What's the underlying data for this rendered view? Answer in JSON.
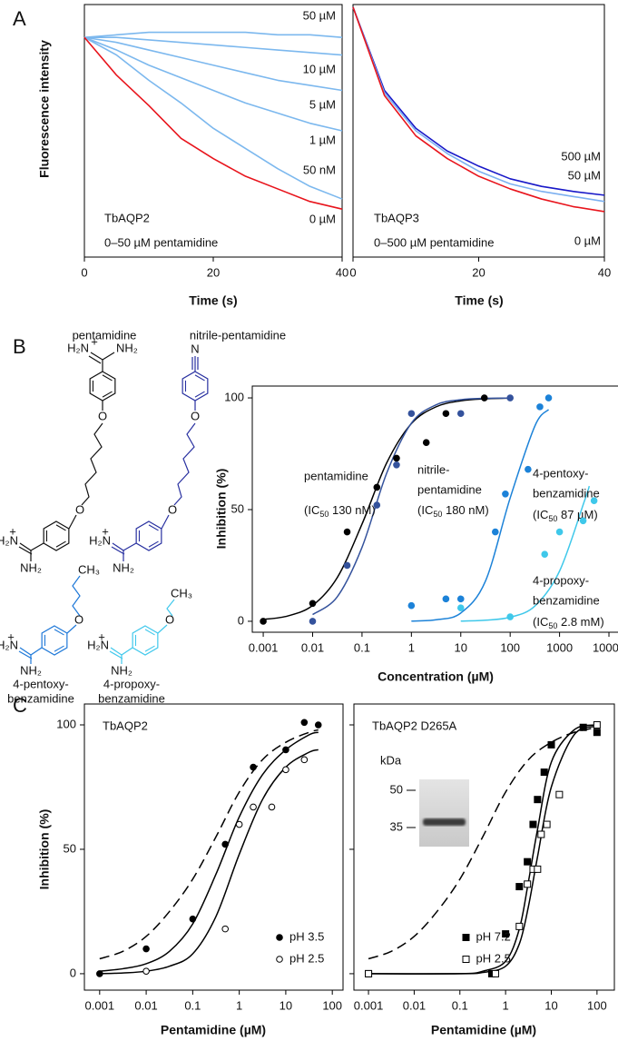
{
  "chart_data": [
    {
      "type": "line",
      "panel_label": "A",
      "ylabel": "Fluorescence intensity",
      "xlabel": "Time (s)",
      "annotations": [
        "TbAQP2",
        "0–50 µM pentamidine"
      ],
      "xlim": [
        0,
        40
      ],
      "xticks": [
        0,
        20,
        40
      ],
      "ylim": [
        0,
        1
      ],
      "x": [
        0,
        5,
        10,
        15,
        20,
        25,
        30,
        35,
        40
      ],
      "series": [
        {
          "name": "50 µM",
          "color": "#7cb8ee",
          "values": [
            0.87,
            0.88,
            0.89,
            0.89,
            0.89,
            0.89,
            0.88,
            0.88,
            0.87
          ]
        },
        {
          "name": "10 µM",
          "color": "#7cb8ee",
          "values": [
            0.87,
            0.87,
            0.86,
            0.85,
            0.84,
            0.83,
            0.82,
            0.81,
            0.8
          ]
        },
        {
          "name": "5 µM",
          "color": "#7cb8ee",
          "values": [
            0.87,
            0.85,
            0.82,
            0.79,
            0.76,
            0.73,
            0.7,
            0.68,
            0.66
          ]
        },
        {
          "name": "1 µM",
          "color": "#7cb8ee",
          "values": [
            0.87,
            0.82,
            0.76,
            0.71,
            0.66,
            0.61,
            0.57,
            0.53,
            0.5
          ]
        },
        {
          "name": "50 nM",
          "color": "#7cb8ee",
          "values": [
            0.87,
            0.8,
            0.7,
            0.61,
            0.51,
            0.43,
            0.35,
            0.28,
            0.23
          ]
        },
        {
          "name": "0 µM",
          "color": "#e8141c",
          "values": [
            0.87,
            0.72,
            0.6,
            0.47,
            0.39,
            0.32,
            0.27,
            0.22,
            0.19
          ]
        }
      ]
    },
    {
      "type": "line",
      "xlabel": "Time (s)",
      "annotations": [
        "TbAQP3",
        "0–500 µM pentamidine"
      ],
      "xlim": [
        0,
        40
      ],
      "xticks": [
        0,
        20,
        40
      ],
      "ylim": [
        0,
        1
      ],
      "x": [
        0,
        5,
        10,
        15,
        20,
        25,
        30,
        35,
        40
      ],
      "series": [
        {
          "name": "500 µM",
          "color": "#1818c8",
          "values": [
            0.99,
            0.66,
            0.51,
            0.42,
            0.36,
            0.31,
            0.28,
            0.26,
            0.245
          ]
        },
        {
          "name": "50 µM",
          "color": "#7cb0f0",
          "values": [
            0.99,
            0.65,
            0.5,
            0.41,
            0.34,
            0.29,
            0.26,
            0.24,
            0.22
          ]
        },
        {
          "name": "0 µM",
          "color": "#e8141c",
          "values": [
            0.99,
            0.64,
            0.48,
            0.39,
            0.32,
            0.27,
            0.23,
            0.2,
            0.18
          ]
        }
      ]
    },
    {
      "type": "scatter",
      "panel_label": "B",
      "xscale": "log",
      "ylabel": "Inhibition (%)",
      "xlabel": "Concentration (µM)",
      "xlim": [
        0.0006,
        16600
      ],
      "xticks": [
        0.001,
        0.01,
        0.1,
        1,
        10,
        100,
        1000,
        10000
      ],
      "ylim": [
        -4.9,
        105.3
      ],
      "yticks": [
        0,
        50,
        100
      ],
      "series": [
        {
          "name_lines": [
            "pentamidine"
          ],
          "ic50_label": [
            "(IC",
            "50",
            " 130 nM)"
          ],
          "color": "#000000",
          "marker": "circle",
          "filled": true,
          "x": [
            0.001,
            0.01,
            0.05,
            0.2,
            0.5,
            2,
            5,
            30
          ],
          "values": [
            0,
            8,
            40,
            60,
            73,
            80,
            93,
            100
          ]
        },
        {
          "name_lines": [
            "nitrile-",
            "pentamidine"
          ],
          "ic50_label": [
            "(IC",
            "50",
            " 180 nM)"
          ],
          "color": "#34529c",
          "marker": "circle",
          "filled": true,
          "x": [
            0.01,
            0.05,
            0.2,
            0.5,
            1,
            10,
            100
          ],
          "values": [
            0,
            25,
            52,
            70,
            93,
            93,
            100
          ]
        },
        {
          "name_lines": [
            "4-pentoxy-",
            "benzamidine"
          ],
          "ic50_label": [
            "(IC",
            "50",
            " 87 µM)"
          ],
          "color": "#1c82d8",
          "marker": "circle",
          "filled": true,
          "x": [
            1,
            5,
            10,
            50,
            80,
            230,
            400,
            600
          ],
          "values": [
            7,
            10,
            10,
            40,
            57,
            68,
            96,
            100
          ]
        },
        {
          "name_lines": [
            "4-propoxy-",
            "benzamidine"
          ],
          "ic50_label": [
            "(IC",
            "50",
            " 2.8 mM)"
          ],
          "color": "#3fc8ea",
          "marker": "circle",
          "filled": true,
          "x": [
            10,
            100,
            500,
            1000,
            3000,
            5000
          ],
          "values": [
            6,
            2,
            30,
            40,
            45,
            54
          ]
        }
      ],
      "curves": [
        {
          "color": "#000000",
          "x": [
            0.001,
            0.00316,
            0.01,
            0.0316,
            0.1,
            0.316,
            1,
            3.16,
            10,
            31.6,
            100
          ],
          "y": [
            0.8,
            2.4,
            7.1,
            19.6,
            43.5,
            70.9,
            88.5,
            96,
            98.7,
            99.6,
            99.9
          ]
        },
        {
          "color": "#34529c",
          "x": [
            0.01,
            0.0316,
            0.1,
            0.316,
            1,
            3.16,
            10,
            31.6,
            100
          ],
          "y": [
            3,
            11,
            33.1,
            66.3,
            88.7,
            96.9,
            99.2,
            99.8,
            99.9
          ]
        },
        {
          "color": "#1c82d8",
          "x": [
            1,
            3.16,
            10,
            31.6,
            100,
            316,
            600
          ],
          "y": [
            0.1,
            0.7,
            3.7,
            18,
            55.2,
            87.4,
            94.8
          ]
        },
        {
          "color": "#3fc8ea",
          "x": [
            10,
            31.6,
            100,
            316,
            1000,
            3160,
            4000
          ],
          "y": [
            0.1,
            0.5,
            1.8,
            6.8,
            22.5,
            53.6,
            60.5
          ]
        }
      ]
    },
    {
      "type": "scatter",
      "panel_label": "C",
      "title": "TbAQP2",
      "xscale": "log",
      "ylabel": "Inhibition (%)",
      "xlabel": "Pentamidine (µM)",
      "xlim": [
        0.00047,
        170
      ],
      "xticks": [
        0.001,
        0.01,
        0.1,
        1,
        10,
        100
      ],
      "ylim": [
        -6.6,
        108.4
      ],
      "yticks": [
        0,
        50,
        100
      ],
      "legend": "lower right",
      "series": [
        {
          "name": "pH 3.5",
          "color": "#000000",
          "marker": "circle",
          "filled": true,
          "x": [
            0.001,
            0.01,
            0.1,
            0.5,
            2,
            10,
            25,
            50
          ],
          "values": [
            0,
            10,
            22,
            52,
            83,
            90,
            101,
            100
          ]
        },
        {
          "name": "pH 2.5",
          "color": "#000000",
          "marker": "circle",
          "filled": false,
          "x": [
            0.01,
            0.5,
            1,
            2,
            5,
            10,
            25
          ],
          "values": [
            1,
            18,
            60,
            67,
            67,
            82,
            86
          ]
        }
      ],
      "curves": [
        {
          "color": "#000000",
          "dashed": true,
          "x": [
            0.001,
            0.00316,
            0.01,
            0.0316,
            0.1,
            0.316,
            1,
            3.16,
            10,
            31.6,
            50
          ],
          "y": [
            6,
            9,
            15,
            25,
            38,
            55,
            73,
            86,
            93,
            97,
            98
          ]
        },
        {
          "color": "#000000",
          "x": [
            0.001,
            0.00316,
            0.01,
            0.0316,
            0.1,
            0.316,
            1,
            3.16,
            10,
            31.6,
            50
          ],
          "y": [
            1,
            2,
            4,
            9,
            20,
            40,
            63,
            80,
            90,
            96,
            97
          ]
        },
        {
          "color": "#000000",
          "x": [
            0.001,
            0.00316,
            0.01,
            0.0316,
            0.1,
            0.316,
            1,
            3.16,
            10,
            31.6,
            50
          ],
          "y": [
            0,
            0.3,
            1,
            3,
            8,
            23,
            48,
            70,
            83,
            89,
            90
          ]
        }
      ]
    },
    {
      "type": "scatter",
      "title": "TbAQP2 D265A",
      "xscale": "log",
      "xlabel": "Pentamidine (µM)",
      "xlim": [
        0.00048,
        240
      ],
      "xticks": [
        0.001,
        0.01,
        0.1,
        1,
        10,
        100
      ],
      "ylim": [
        -6.6,
        108.4
      ],
      "yticks": [
        0,
        50,
        100
      ],
      "ytick_labels": false,
      "legend": "lower center",
      "inset": {
        "title": "kDa",
        "ladder": [
          50,
          35
        ]
      },
      "series": [
        {
          "name": "pH 7.2",
          "color": "#000000",
          "marker": "square",
          "filled": true,
          "x": [
            0.001,
            0.5,
            1,
            2,
            3,
            4,
            5,
            7,
            10,
            50,
            100
          ],
          "values": [
            0,
            0,
            16,
            35,
            45,
            60,
            70,
            81,
            92,
            99,
            97
          ]
        },
        {
          "name": "pH 2.5",
          "color": "#000000",
          "marker": "square",
          "filled": false,
          "x": [
            0.001,
            0.6,
            2,
            3,
            4,
            5,
            6,
            8,
            15,
            100
          ],
          "values": [
            0,
            0,
            19,
            36,
            42,
            42,
            56,
            60,
            72,
            100
          ]
        }
      ],
      "curves": [
        {
          "color": "#000000",
          "dashed": true,
          "x": [
            0.001,
            0.00316,
            0.01,
            0.0316,
            0.1,
            0.316,
            1,
            3.16,
            10,
            31.6,
            100
          ],
          "y": [
            6,
            9,
            15,
            25,
            38,
            55,
            73,
            86,
            93,
            97,
            99
          ]
        },
        {
          "color": "#000000",
          "x": [
            0.001,
            0.1,
            0.316,
            1,
            2,
            3.16,
            5,
            10,
            31.6,
            100
          ],
          "y": [
            0,
            0,
            1,
            5,
            18,
            37,
            58,
            85,
            98,
            100
          ]
        },
        {
          "color": "#000000",
          "x": [
            0.001,
            0.1,
            0.316,
            1,
            2,
            3.16,
            5,
            10,
            31.6,
            100
          ],
          "y": [
            0,
            0,
            0.5,
            3,
            12,
            27,
            47,
            75,
            96,
            99.5
          ]
        }
      ]
    }
  ],
  "structures": [
    {
      "name_lines": [
        "pentamidine"
      ],
      "color": "#111111",
      "atoms": [
        "+",
        "H₂N",
        "NH₂",
        "O",
        "O",
        "+",
        "H₂N",
        "NH₂"
      ]
    },
    {
      "name_lines": [
        "nitrile-pentamidine"
      ],
      "color": "#2830a0",
      "atoms": [
        "N",
        "O",
        "O",
        "+",
        "H₂N",
        "NH₂"
      ]
    },
    {
      "name_lines": [
        "4-pentoxy-",
        "benzamidine"
      ],
      "color": "#1e78d8",
      "atoms": [
        "CH₃",
        "O",
        "+",
        "H₂N",
        "NH₂"
      ]
    },
    {
      "name_lines": [
        "4-propoxy-",
        "benzamidine"
      ],
      "color": "#40c8ec",
      "atoms": [
        "CH₃",
        "O",
        "+",
        "H₂N",
        "NH₂"
      ]
    }
  ]
}
